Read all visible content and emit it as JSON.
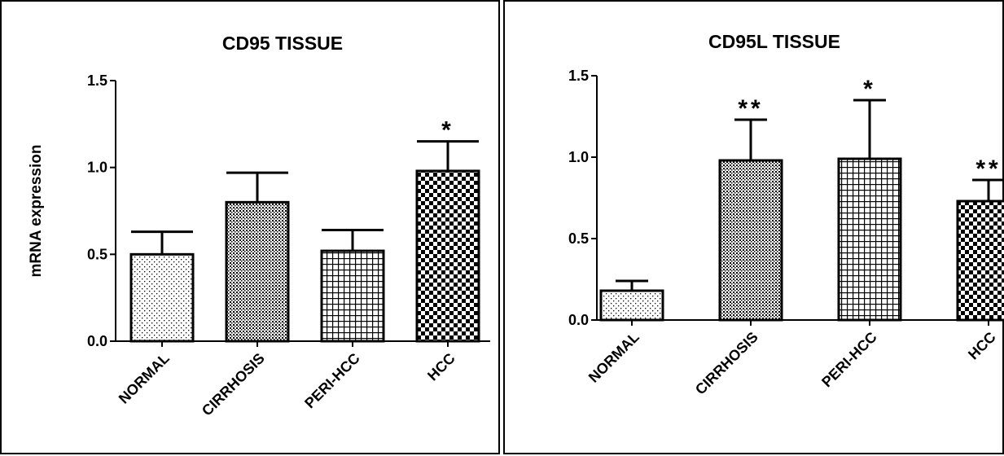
{
  "chart_data": [
    {
      "type": "bar",
      "title": "CD95 TISSUE",
      "ylabel": "mRNA expression",
      "xlabel": "",
      "ylim": [
        0,
        1.5
      ],
      "yticks": [
        "0.0",
        "0.5",
        "1.0",
        "1.5"
      ],
      "categories": [
        "NORMAL",
        "CIRRHOSIS",
        "PERI-HCC",
        "HCC"
      ],
      "values": [
        0.5,
        0.8,
        0.52,
        0.98
      ],
      "errors": [
        0.13,
        0.17,
        0.12,
        0.17
      ],
      "significance": [
        "",
        "",
        "",
        "*"
      ],
      "patterns": [
        "fine-dots",
        "dense-dots",
        "grid",
        "checker"
      ]
    },
    {
      "type": "bar",
      "title": "CD95L TISSUE",
      "ylabel": "",
      "xlabel": "",
      "ylim": [
        0,
        1.5
      ],
      "yticks": [
        "0.0",
        "0.5",
        "1.0",
        "1.5"
      ],
      "categories": [
        "NORMAL",
        "CIRRHOSIS",
        "PERI-HCC",
        "HCC"
      ],
      "values": [
        0.18,
        0.98,
        0.99,
        0.73
      ],
      "errors": [
        0.06,
        0.25,
        0.36,
        0.13
      ],
      "significance": [
        "",
        "**",
        "*",
        "**"
      ],
      "patterns": [
        "fine-dots",
        "dense-dots",
        "grid",
        "checker"
      ]
    }
  ]
}
